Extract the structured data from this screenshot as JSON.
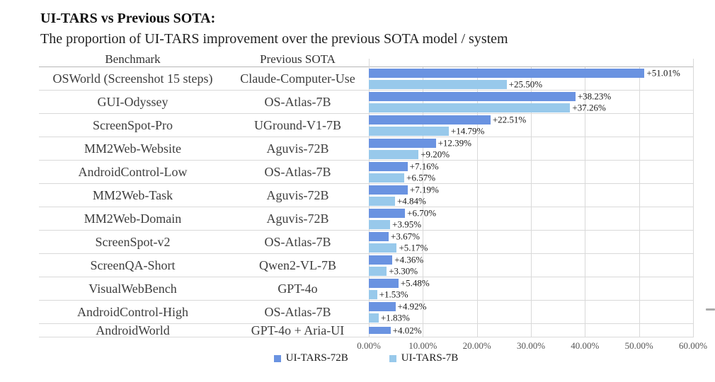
{
  "page": {
    "title": "UI-TARS vs Previous SOTA:",
    "subtitle": "The proportion of UI-TARS improvement over the previous SOTA model / system"
  },
  "table_headers": {
    "benchmark": "Benchmark",
    "previous_sota": "Previous SOTA"
  },
  "chart_data": {
    "type": "bar",
    "orientation": "horizontal",
    "title": "UI-TARS vs Previous SOTA:",
    "subtitle": "The proportion of UI-TARS improvement over the previous SOTA model / system",
    "categories": [
      "OSWorld (Screenshot 15 steps)",
      "GUI-Odyssey",
      "ScreenSpot-Pro",
      "MM2Web-Website",
      "AndroidControl-Low",
      "MM2Web-Task",
      "MM2Web-Domain",
      "ScreenSpot-v2",
      "ScreenQA-Short",
      "VisualWebBench",
      "AndroidControl-High",
      "AndroidWorld"
    ],
    "previous_sota": [
      "Claude-Computer-Use",
      "OS-Atlas-7B",
      "UGround-V1-7B",
      "Aguvis-72B",
      "OS-Atlas-7B",
      "Aguvis-72B",
      "Aguvis-72B",
      "OS-Atlas-7B",
      "Qwen2-VL-7B",
      "GPT-4o",
      "OS-Atlas-7B",
      "GPT-4o + Aria-UI"
    ],
    "series": [
      {
        "name": "UI-TARS-72B",
        "color": "#6A93E1",
        "values": [
          51.01,
          38.23,
          22.51,
          12.39,
          7.16,
          7.19,
          6.7,
          3.67,
          4.36,
          5.48,
          4.92,
          4.02
        ]
      },
      {
        "name": "UI-TARS-7B",
        "color": "#98C9EB",
        "values": [
          25.5,
          37.26,
          14.79,
          9.2,
          6.57,
          4.84,
          3.95,
          5.17,
          3.3,
          1.53,
          1.83,
          null
        ]
      }
    ],
    "value_label_format": "+{value}%",
    "xlim": [
      0,
      60
    ],
    "x_ticks": [
      "0.00%",
      "10.00%",
      "20.00%",
      "30.00%",
      "40.00%",
      "50.00%",
      "60.00%"
    ],
    "grid": "vertical",
    "legend_position": "bottom"
  }
}
